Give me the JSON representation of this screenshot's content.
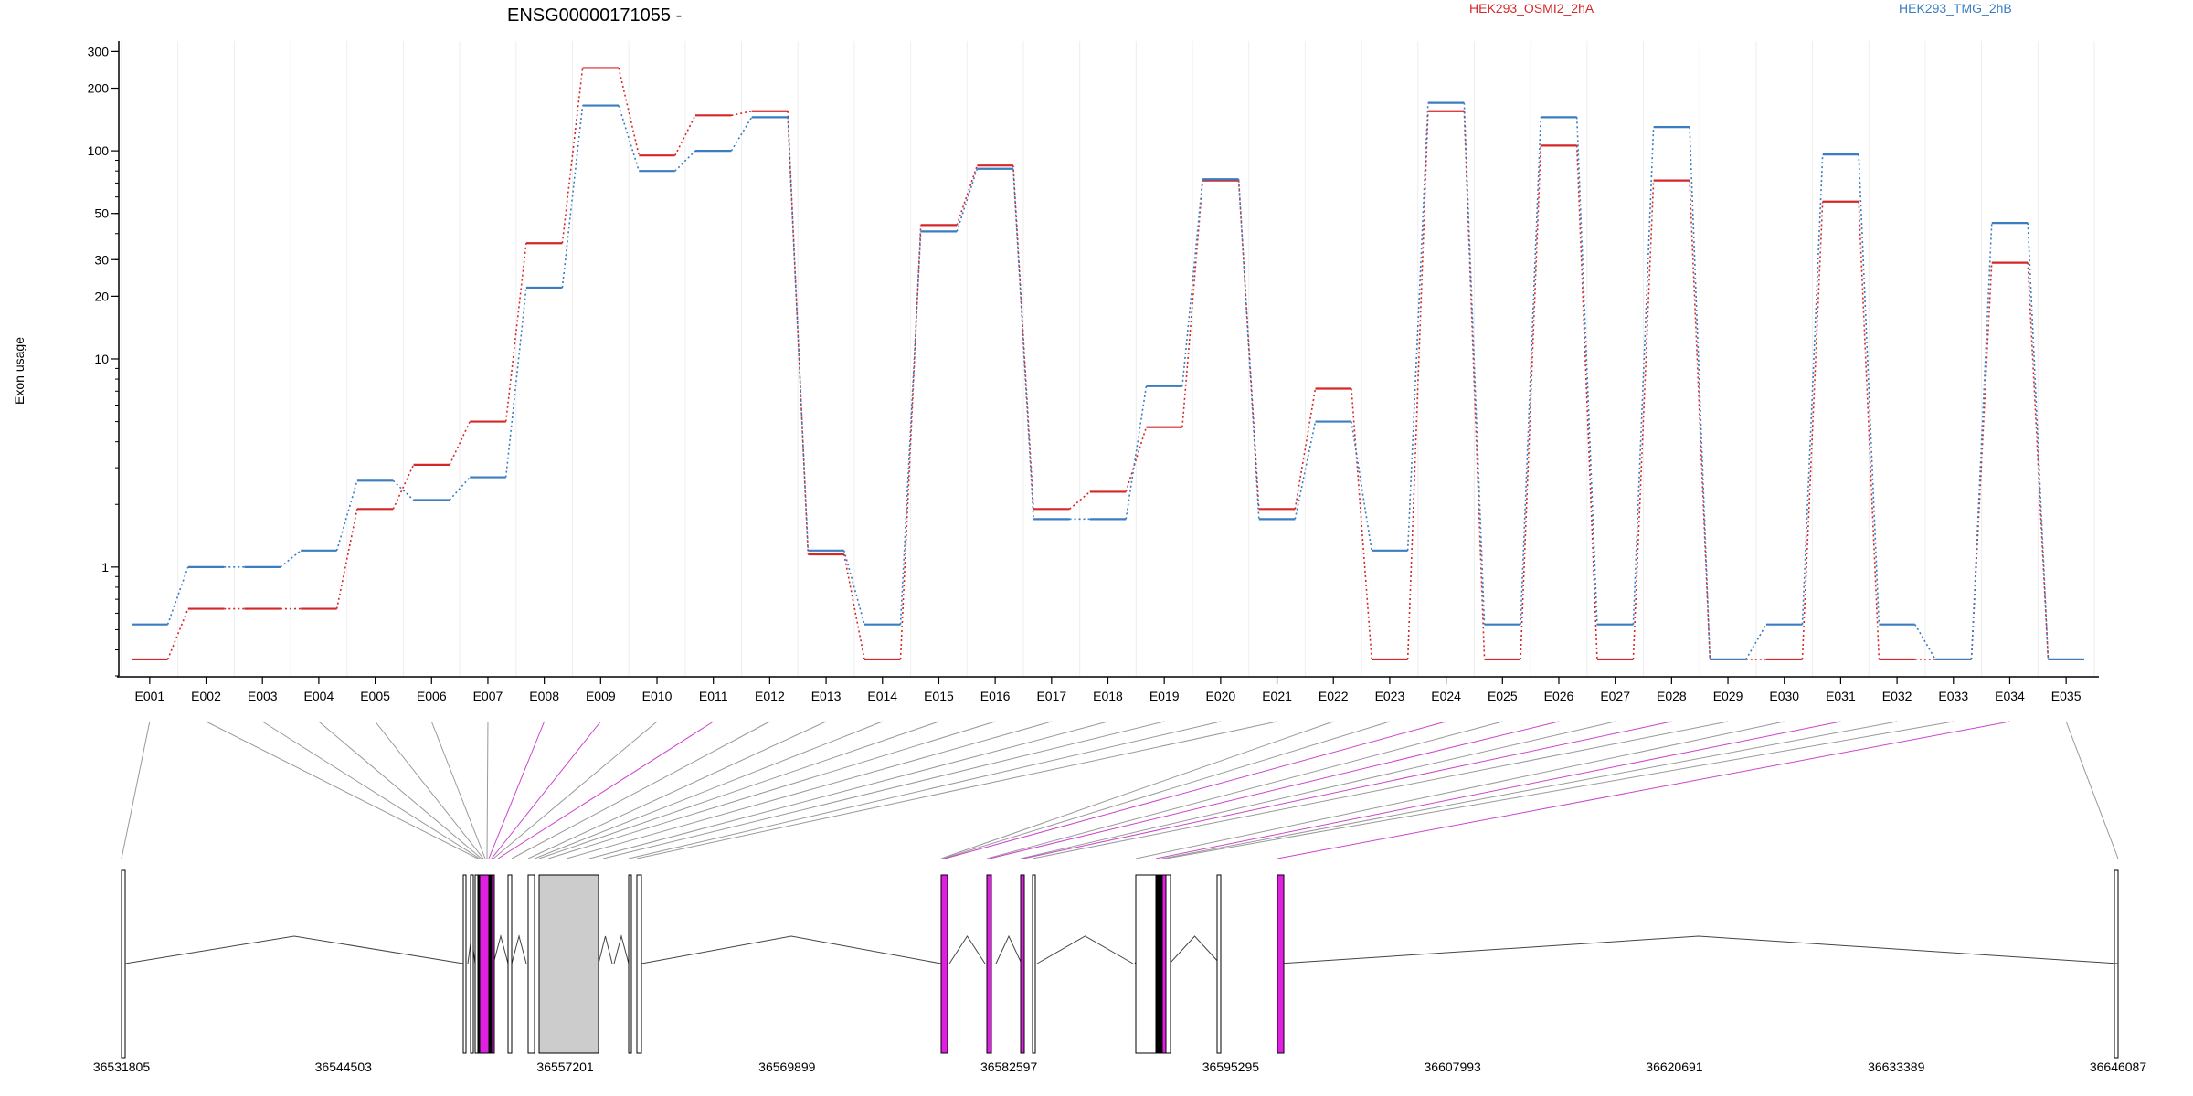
{
  "chart_data": {
    "type": "line",
    "title": "ENSG00000171055 -",
    "xlabel": "",
    "ylabel": "Exon usage",
    "y_scale": "log",
    "ylim": [
      0.3,
      320
    ],
    "y_ticks": [
      1,
      10,
      20,
      30,
      50,
      100,
      200,
      300
    ],
    "grid": "vertical",
    "legend": "top",
    "categories": [
      "E001",
      "E002",
      "E003",
      "E004",
      "E005",
      "E006",
      "E007",
      "E008",
      "E009",
      "E010",
      "E011",
      "E012",
      "E013",
      "E014",
      "E015",
      "E016",
      "E017",
      "E018",
      "E019",
      "E020",
      "E021",
      "E022",
      "E023",
      "E024",
      "E025",
      "E026",
      "E027",
      "E028",
      "E029",
      "E030",
      "E031",
      "E032",
      "E033",
      "E034",
      "E035"
    ],
    "series": [
      {
        "name": "HEK293_OSMI2_2hA",
        "color": "#d62728",
        "values": [
          0.36,
          0.63,
          0.63,
          0.63,
          1.9,
          3.1,
          5.0,
          36,
          250,
          95,
          148,
          155,
          1.15,
          0.36,
          44,
          85,
          1.9,
          2.3,
          4.7,
          72,
          1.9,
          7.2,
          0.36,
          155,
          0.36,
          106,
          0.36,
          72,
          0.36,
          0.36,
          57,
          0.36,
          0.36,
          29,
          0.36
        ]
      },
      {
        "name": "HEK293_TMG_2hB",
        "color": "#3a7dc0",
        "values": [
          0.53,
          1.0,
          1.0,
          1.2,
          2.6,
          2.1,
          2.7,
          22,
          165,
          80,
          100,
          145,
          1.2,
          0.53,
          41,
          82,
          1.7,
          1.7,
          7.4,
          73,
          1.7,
          5.0,
          1.2,
          170,
          0.53,
          145,
          0.53,
          130,
          0.36,
          0.53,
          96,
          0.53,
          0.36,
          45,
          0.36
        ]
      }
    ],
    "genome_axis": {
      "ticks": [
        "36531805",
        "36544503",
        "36557201",
        "36569899",
        "36582597",
        "36595295",
        "36607993",
        "36620691",
        "36633389",
        "36646087"
      ],
      "connector_colors": [
        "#999999",
        "#999999",
        "#999999",
        "#999999",
        "#999999",
        "#999999",
        "#999999",
        "#cc44cc",
        "#cc44cc",
        "#999999",
        "#cc44cc",
        "#999999",
        "#999999",
        "#999999",
        "#999999",
        "#999999",
        "#999999",
        "#999999",
        "#999999",
        "#999999",
        "#999999",
        "#999999",
        "#999999",
        "#cc44cc",
        "#999999",
        "#cc44cc",
        "#999999",
        "#cc44cc",
        "#999999",
        "#999999",
        "#cc44cc",
        "#999999",
        "#999999",
        "#cc44cc",
        "#999999"
      ],
      "highlight_color": "#e020e0",
      "intron_fill": "#cccccc"
    }
  }
}
